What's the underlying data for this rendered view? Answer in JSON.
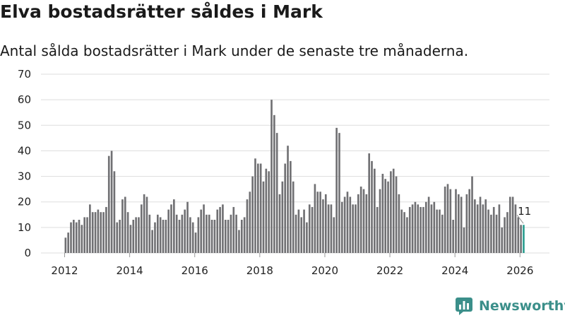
{
  "title": "Elva bostadsrätter såldes i Mark",
  "subtitle": "Antal sålda bostadsrätter i Mark under de senaste tre månaderna.",
  "brand": "Newsworthy",
  "colors": {
    "bar": "#707073",
    "highlight": "#2a9d8f",
    "brand": "#3b8f8a"
  },
  "chart_data": {
    "type": "bar",
    "title": "Elva bostadsrätter såldes i Mark",
    "xlabel": "",
    "ylabel": "",
    "ylim": [
      0,
      70
    ],
    "yticks": [
      0,
      10,
      20,
      30,
      40,
      50,
      60,
      70
    ],
    "xticks": [
      "2012",
      "2014",
      "2016",
      "2018",
      "2020",
      "2022",
      "2024",
      "2026"
    ],
    "start": "2012-01",
    "frequency": "monthly",
    "last_label": "11",
    "values": [
      6,
      8,
      12,
      13,
      12,
      13,
      11,
      14,
      14,
      19,
      16,
      16,
      17,
      16,
      16,
      18,
      38,
      40,
      32,
      12,
      13,
      21,
      22,
      16,
      11,
      13,
      14,
      14,
      19,
      23,
      22,
      15,
      9,
      12,
      15,
      14,
      13,
      13,
      17,
      19,
      21,
      15,
      13,
      15,
      17,
      20,
      14,
      12,
      8,
      14,
      17,
      19,
      15,
      15,
      13,
      13,
      17,
      18,
      19,
      13,
      13,
      15,
      18,
      15,
      9,
      13,
      14,
      21,
      24,
      30,
      37,
      35,
      35,
      28,
      33,
      32,
      60,
      54,
      47,
      23,
      28,
      35,
      42,
      36,
      28,
      15,
      17,
      14,
      17,
      12,
      19,
      18,
      27,
      24,
      24,
      21,
      23,
      19,
      19,
      14,
      49,
      47,
      20,
      22,
      24,
      22,
      19,
      19,
      23,
      26,
      25,
      23,
      39,
      36,
      33,
      18,
      25,
      31,
      29,
      28,
      32,
      33,
      30,
      23,
      17,
      16,
      14,
      18,
      19,
      20,
      19,
      18,
      18,
      20,
      22,
      19,
      20,
      17,
      17,
      15,
      26,
      27,
      25,
      13,
      25,
      23,
      22,
      10,
      23,
      25,
      30,
      21,
      19,
      22,
      19,
      21,
      17,
      15,
      18,
      15,
      19,
      10,
      14,
      16,
      22,
      22,
      19,
      14,
      11,
      11
    ]
  }
}
